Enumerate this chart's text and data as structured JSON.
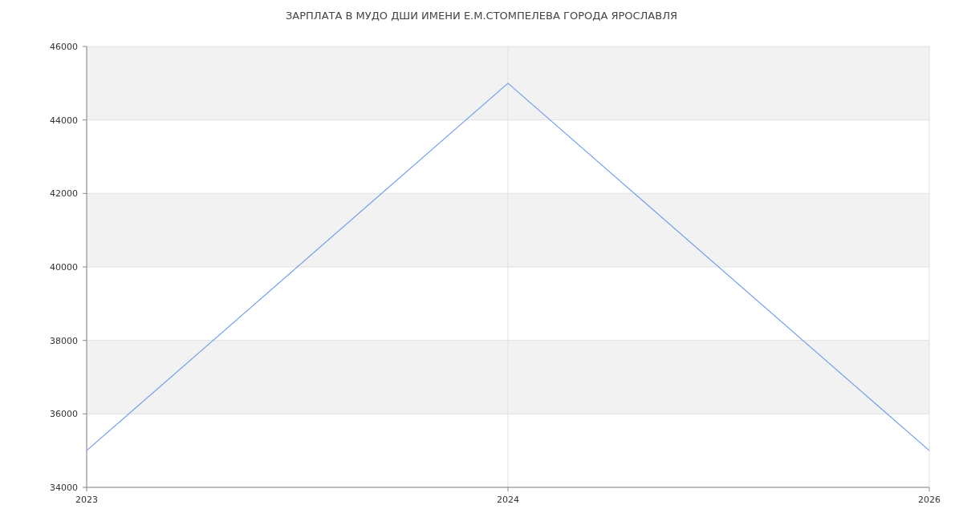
{
  "chart_data": {
    "type": "line",
    "title": "ЗАРПЛАТА В МУДО ДШИ ИМЕНИ Е.М.СТОМПЕЛЕВА ГОРОДА ЯРОСЛАВЛЯ",
    "categories": [
      "2023",
      "2024",
      "2026"
    ],
    "series": [
      {
        "color": "#6f9cf0",
        "values": [
          35000,
          45000,
          35000
        ]
      }
    ],
    "ylim": [
      34000,
      46000
    ],
    "yticks": [
      34000,
      36000,
      38000,
      40000,
      42000,
      44000,
      46000
    ],
    "grid": true,
    "marker": "none",
    "line_style": "solid"
  }
}
